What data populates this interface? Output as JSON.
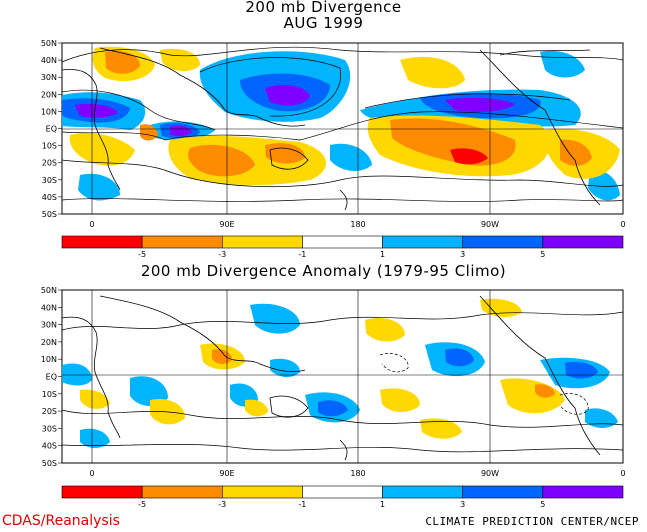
{
  "top_panel": {
    "title_line1": "200 mb Divergence",
    "title_line2": "AUG 1999"
  },
  "bottom_panel": {
    "title": "200 mb Divergence Anomaly (1979-95 Climo)"
  },
  "lat_labels": [
    "50N",
    "40N",
    "30N",
    "20N",
    "10N",
    "EQ",
    "10S",
    "20S",
    "30S",
    "40S",
    "50S"
  ],
  "lon_labels": [
    "0",
    "90E",
    "180",
    "90W",
    "0"
  ],
  "colorbar": {
    "colors": [
      "#ff0000",
      "#ff8c00",
      "#ffd800",
      "#ffffff",
      "#00b4ff",
      "#0064ff",
      "#7f00ff"
    ],
    "ticks": [
      "-5",
      "-3",
      "-1",
      "1",
      "3",
      "5"
    ]
  },
  "footer": {
    "left": "CDAS/Reanalysis",
    "right": "CLIMATE PREDICTION CENTER/NCEP"
  },
  "map_colors": {
    "red": "#ff0000",
    "orange": "#ff8c00",
    "yellow": "#ffd800",
    "light_blue": "#00b4ff",
    "blue": "#0064ff",
    "purple": "#7f00ff"
  }
}
